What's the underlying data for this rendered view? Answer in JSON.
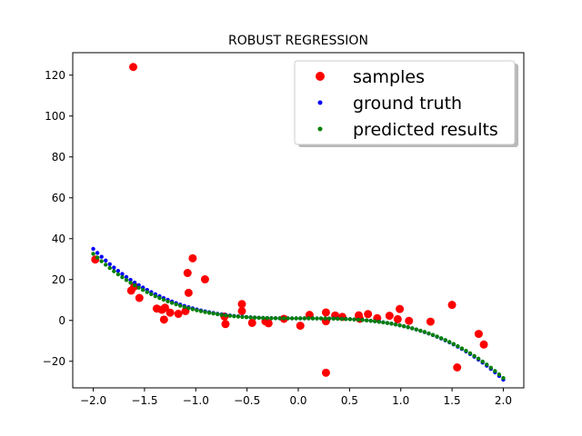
{
  "chart_data": {
    "type": "scatter",
    "title": "ROBUST REGRESSION",
    "xlabel": "",
    "ylabel": "",
    "xlim": [
      -2.2,
      2.2
    ],
    "ylim": [
      -33,
      131
    ],
    "xticks": [
      "−2.0",
      "−1.5",
      "−1.0",
      "−0.5",
      "0.0",
      "0.5",
      "1.0",
      "1.5",
      "2.0"
    ],
    "xtick_values": [
      -2.0,
      -1.5,
      -1.0,
      -0.5,
      0.0,
      0.5,
      1.0,
      1.5,
      2.0
    ],
    "yticks": [
      "−20",
      "0",
      "20",
      "40",
      "60",
      "80",
      "100",
      "120"
    ],
    "ytick_values": [
      -20,
      0,
      20,
      40,
      60,
      80,
      100,
      120
    ],
    "grid": false,
    "legend": {
      "position": "top-right"
    },
    "series": [
      {
        "name": "samples",
        "color": "#ff0000",
        "marker": "large-dot",
        "points": [
          [
            -1.98,
            29.8
          ],
          [
            -1.63,
            14.6
          ],
          [
            -1.61,
            124.0
          ],
          [
            -1.6,
            16.6
          ],
          [
            -1.55,
            11.0
          ],
          [
            -1.38,
            5.8
          ],
          [
            -1.33,
            5.2
          ],
          [
            -1.31,
            0.4
          ],
          [
            -1.3,
            6.2
          ],
          [
            -1.25,
            3.8
          ],
          [
            -1.17,
            3.2
          ],
          [
            -1.1,
            4.6
          ],
          [
            -1.08,
            23.2
          ],
          [
            -1.07,
            13.5
          ],
          [
            -1.03,
            30.4
          ],
          [
            -0.91,
            20.1
          ],
          [
            -0.72,
            1.9
          ],
          [
            -0.71,
            -1.8
          ],
          [
            -0.55,
            8.0
          ],
          [
            -0.55,
            4.6
          ],
          [
            -0.45,
            -1.2
          ],
          [
            -0.32,
            -0.5
          ],
          [
            -0.29,
            -1.4
          ],
          [
            -0.14,
            0.8
          ],
          [
            0.02,
            -2.6
          ],
          [
            0.11,
            2.7
          ],
          [
            0.27,
            3.9
          ],
          [
            0.27,
            -0.4
          ],
          [
            0.27,
            -25.6
          ],
          [
            0.36,
            2.4
          ],
          [
            0.43,
            1.7
          ],
          [
            0.59,
            2.5
          ],
          [
            0.6,
            0.8
          ],
          [
            0.68,
            3.1
          ],
          [
            0.77,
            1.1
          ],
          [
            0.89,
            2.3
          ],
          [
            0.97,
            0.6
          ],
          [
            0.99,
            5.6
          ],
          [
            1.08,
            -0.2
          ],
          [
            1.29,
            -0.6
          ],
          [
            1.5,
            7.6
          ],
          [
            1.55,
            -23.0
          ],
          [
            1.76,
            -6.6
          ],
          [
            1.81,
            -11.8
          ]
        ]
      },
      {
        "name": "ground truth",
        "color": "#0000ff",
        "marker": "small-dot",
        "formula": "-4x^3 + 0.5x^2 + 1"
      },
      {
        "name": "predicted results",
        "color": "#008000",
        "marker": "small-dot",
        "formula": "-3.8x^3 + 0.3x^2 + 1"
      }
    ]
  }
}
